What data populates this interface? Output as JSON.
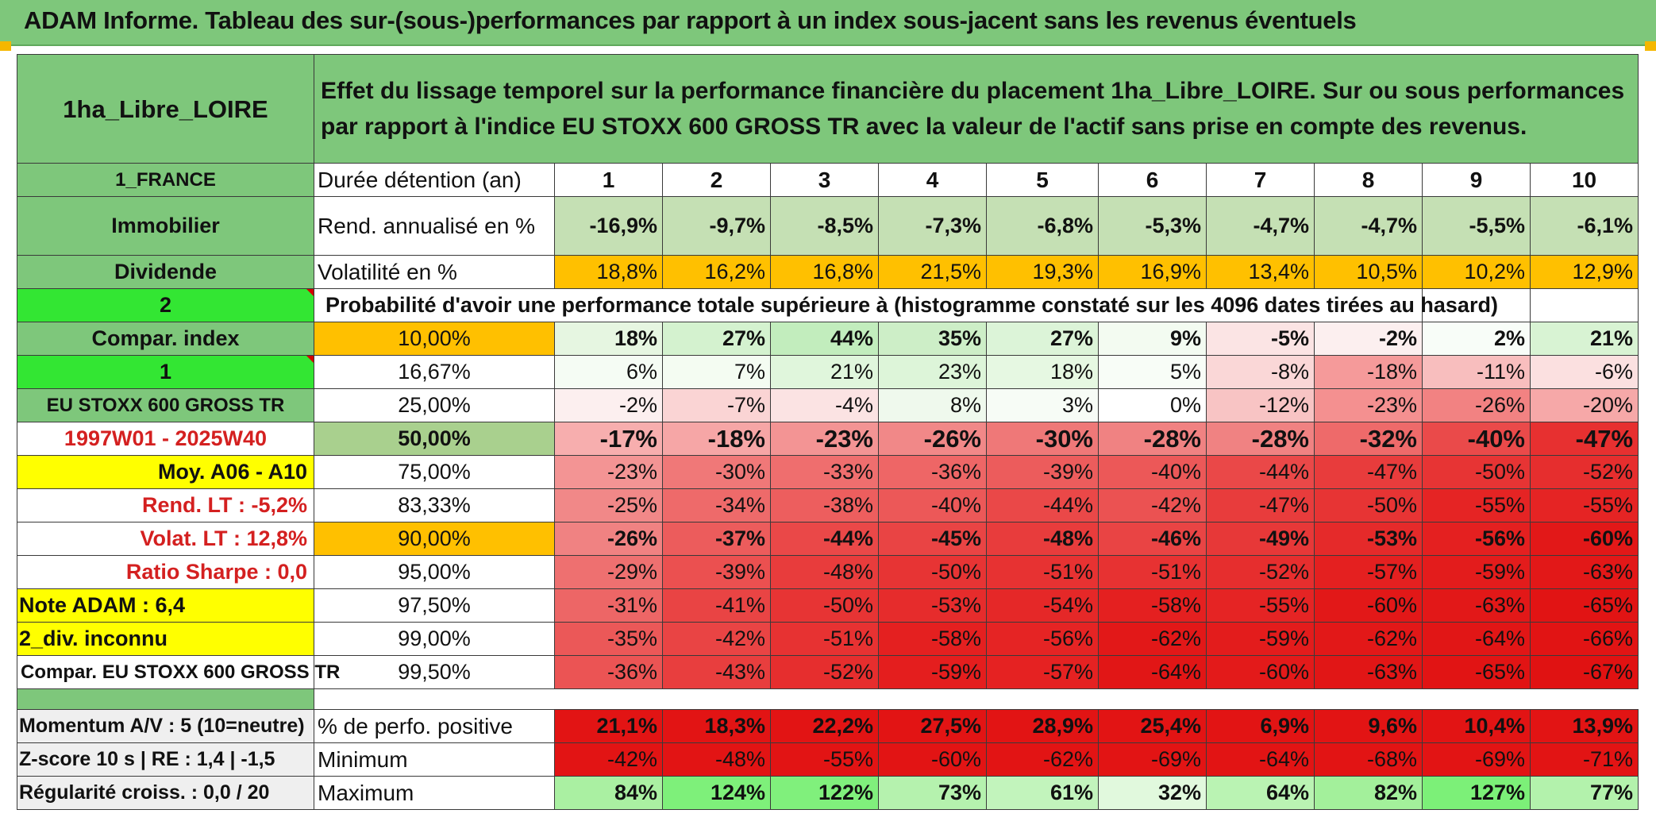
{
  "title": "ADAM Informe. Tableau des sur-(sous-)performances par rapport à un index sous-jacent sans les revenus éventuels",
  "fund_name": "1ha_Libre_LOIRE",
  "description": "Effet du lissage temporel sur la performance financière du placement 1ha_Libre_LOIRE. Sur ou sous performances par rapport à l'indice EU STOXX 600 GROSS TR avec la valeur de l'actif sans prise en compte des revenus.",
  "header_row": {
    "left": "1_FRANCE",
    "mid": "Durée détention (an)",
    "years": [
      "1",
      "2",
      "3",
      "4",
      "5",
      "6",
      "7",
      "8",
      "9",
      "10"
    ]
  },
  "rend_row": {
    "left": "Immobilier",
    "mid": "Rend. annualisé en %",
    "values": [
      "-16,9%",
      "-9,7%",
      "-8,5%",
      "-7,3%",
      "-6,8%",
      "-5,3%",
      "-4,7%",
      "-4,7%",
      "-5,5%",
      "-6,1%"
    ]
  },
  "vol_row": {
    "left": "Dividende",
    "mid": "Volatilité en %",
    "values": [
      "18,8%",
      "16,2%",
      "16,8%",
      "21,5%",
      "19,3%",
      "16,9%",
      "13,4%",
      "10,5%",
      "10,2%",
      "12,9%"
    ]
  },
  "prob_row": {
    "left": "2",
    "text": "Probabilité d'avoir une performance totale supérieure à (histogramme constaté sur les 4096 dates tirées au hasard)"
  },
  "quantile_rows": [
    {
      "left": "Compar. index",
      "pct": "10,00%",
      "values": [
        "18%",
        "27%",
        "44%",
        "35%",
        "27%",
        "9%",
        "-5%",
        "-2%",
        "2%",
        "21%"
      ]
    },
    {
      "left": "1",
      "pct": "16,67%",
      "values": [
        "6%",
        "7%",
        "21%",
        "23%",
        "18%",
        "5%",
        "-8%",
        "-18%",
        "-11%",
        "-6%"
      ]
    },
    {
      "left": "EU STOXX 600 GROSS TR",
      "pct": "25,00%",
      "values": [
        "-2%",
        "-7%",
        "-4%",
        "8%",
        "3%",
        "0%",
        "-12%",
        "-23%",
        "-26%",
        "-20%"
      ]
    },
    {
      "left": "1997W01 - 2025W40",
      "pct": "50,00%",
      "values": [
        "-17%",
        "-18%",
        "-23%",
        "-26%",
        "-30%",
        "-28%",
        "-28%",
        "-32%",
        "-40%",
        "-47%"
      ]
    },
    {
      "left": "Moy. A06 - A10",
      "pct": "75,00%",
      "values": [
        "-23%",
        "-30%",
        "-33%",
        "-36%",
        "-39%",
        "-40%",
        "-44%",
        "-47%",
        "-50%",
        "-52%"
      ]
    },
    {
      "left": "Rend. LT :    -5,2%",
      "pct": "83,33%",
      "values": [
        "-25%",
        "-34%",
        "-38%",
        "-40%",
        "-44%",
        "-42%",
        "-47%",
        "-50%",
        "-55%",
        "-55%"
      ]
    },
    {
      "left": "Volat. LT :    12,8%",
      "pct": "90,00%",
      "values": [
        "-26%",
        "-37%",
        "-44%",
        "-45%",
        "-48%",
        "-46%",
        "-49%",
        "-53%",
        "-56%",
        "-60%"
      ]
    },
    {
      "left": "Ratio Sharpe :    0,0",
      "pct": "95,00%",
      "values": [
        "-29%",
        "-39%",
        "-48%",
        "-50%",
        "-51%",
        "-51%",
        "-52%",
        "-57%",
        "-59%",
        "-63%"
      ]
    },
    {
      "left": "Note ADAM : 6,4",
      "pct": "97,50%",
      "values": [
        "-31%",
        "-41%",
        "-50%",
        "-53%",
        "-54%",
        "-58%",
        "-55%",
        "-60%",
        "-63%",
        "-65%"
      ]
    },
    {
      "left": "2_div. inconnu",
      "pct": "99,00%",
      "values": [
        "-35%",
        "-42%",
        "-51%",
        "-58%",
        "-56%",
        "-62%",
        "-59%",
        "-62%",
        "-64%",
        "-66%"
      ]
    },
    {
      "left": "Compar. EU STOXX 600 GROSS TR",
      "pct": "99,50%",
      "values": [
        "-36%",
        "-43%",
        "-52%",
        "-59%",
        "-57%",
        "-64%",
        "-60%",
        "-63%",
        "-65%",
        "-67%"
      ]
    }
  ],
  "stats_rows": [
    {
      "left": "Momentum A/V : 5 (10=neutre)",
      "mid": "% de perfo. positive",
      "values": [
        "21,1%",
        "18,3%",
        "22,2%",
        "27,5%",
        "28,9%",
        "25,4%",
        "6,9%",
        "9,6%",
        "10,4%",
        "13,9%"
      ]
    },
    {
      "left": "Z-score 10 s | RE : 1,4 | -1,5",
      "mid": "Minimum",
      "values": [
        "-42%",
        "-48%",
        "-55%",
        "-60%",
        "-62%",
        "-69%",
        "-64%",
        "-68%",
        "-69%",
        "-71%"
      ]
    },
    {
      "left": "Régularité croiss. : 0,0 / 20",
      "mid": "Maximum",
      "values": [
        "84%",
        "124%",
        "122%",
        "73%",
        "61%",
        "32%",
        "64%",
        "82%",
        "127%",
        "77%"
      ]
    }
  ],
  "colors": {
    "green_label": "#7ec77b",
    "bright_green": "#33e633",
    "orange": "#ffc000",
    "yellow": "#ffff00",
    "red_text": "#d42020",
    "gray_label": "#efefef"
  }
}
